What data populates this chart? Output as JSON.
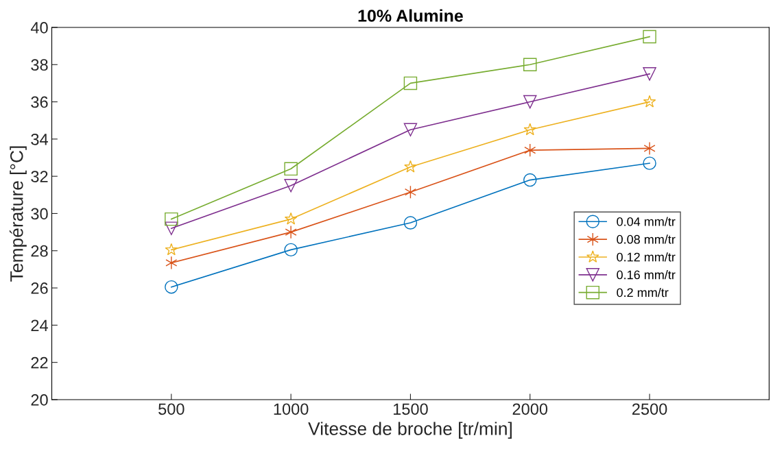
{
  "chart_data": {
    "type": "line",
    "title": "10% Alumine",
    "xlabel": "Vitesse de broche [tr/min]",
    "ylabel": "Température [°C]",
    "x": [
      500,
      1000,
      1500,
      2000,
      2500
    ],
    "xlim": [
      0,
      3000
    ],
    "xticks": [
      500,
      1000,
      1500,
      2000,
      2500
    ],
    "ylim": [
      20,
      40
    ],
    "yticks": [
      20,
      22,
      24,
      26,
      28,
      30,
      32,
      34,
      36,
      38,
      40
    ],
    "grid": false,
    "legend": "right",
    "series": [
      {
        "name": "0.04 mm/tr",
        "color": "#0072bd",
        "marker": "circle",
        "values": [
          26.05,
          28.05,
          29.5,
          31.8,
          32.7
        ]
      },
      {
        "name": "0.08 mm/tr",
        "color": "#d95319",
        "marker": "cross",
        "values": [
          27.35,
          29.0,
          31.15,
          33.4,
          33.5
        ]
      },
      {
        "name": "0.12 mm/tr",
        "color": "#edb120",
        "marker": "star",
        "values": [
          28.05,
          29.7,
          32.5,
          34.5,
          36.0
        ]
      },
      {
        "name": "0.16 mm/tr",
        "color": "#7e2f8e",
        "marker": "triangle",
        "values": [
          29.2,
          31.5,
          34.5,
          36.0,
          37.5
        ]
      },
      {
        "name": "0.2 mm/tr",
        "color": "#77ac30",
        "marker": "square",
        "values": [
          29.7,
          32.4,
          37.0,
          38.0,
          39.5
        ]
      }
    ]
  }
}
